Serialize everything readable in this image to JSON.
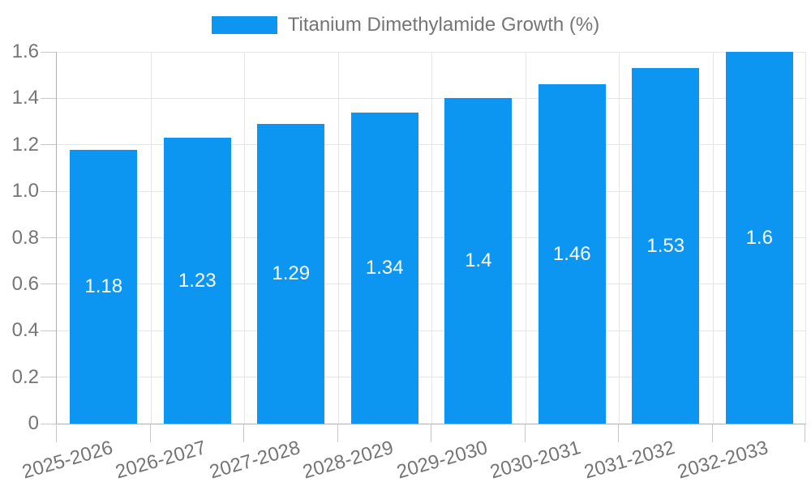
{
  "chart_data": {
    "type": "bar",
    "title": "Titanium Dimethylamide Growth (%)",
    "categories": [
      "2025-2026",
      "2026-2027",
      "2027-2028",
      "2028-2029",
      "2029-2030",
      "2030-2031",
      "2031-2032",
      "2032-2033"
    ],
    "values": [
      1.18,
      1.23,
      1.29,
      1.34,
      1.4,
      1.46,
      1.53,
      1.6
    ],
    "value_labels": [
      "1.18",
      "1.23",
      "1.29",
      "1.34",
      "1.4",
      "1.46",
      "1.53",
      "1.6"
    ],
    "xlabel": "",
    "ylabel": "",
    "ylim": [
      0,
      1.6
    ],
    "yticks": [
      0,
      0.2,
      0.4,
      0.6,
      0.8,
      1.0,
      1.2,
      1.4,
      1.6
    ],
    "ytick_labels": [
      "0",
      "0.2",
      "0.4",
      "0.6",
      "0.8",
      "1.0",
      "1.2",
      "1.4",
      "1.6"
    ],
    "grid": true,
    "legend_position": "top-center",
    "colors": {
      "bar": "#0c96f2",
      "bar_label": "#ffffff",
      "text": "#757575",
      "grid": "#e6e6e6",
      "axis": "#b0b0b0",
      "tick": "#c9c9c9",
      "background": "#ffffff"
    }
  }
}
